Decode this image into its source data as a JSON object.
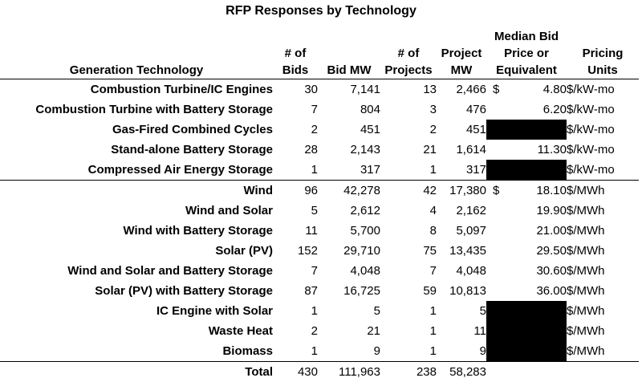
{
  "title": "RFP Responses by Technology",
  "columns": {
    "technology": "Generation Technology",
    "bids": [
      "# of",
      "Bids"
    ],
    "bid_mw": "Bid MW",
    "projects": [
      "# of",
      "Projects"
    ],
    "project_mw": [
      "Project",
      "MW"
    ],
    "median_price": [
      "Median Bid",
      "Price or",
      "Equivalent"
    ],
    "pricing_units": [
      "Pricing",
      "Units"
    ]
  },
  "rows": [
    {
      "technology": "Combustion Turbine/IC Engines",
      "bids": "30",
      "bid_mw": "7,141",
      "projects": "13",
      "project_mw": "2,466",
      "dollar": "$",
      "price": "4.80",
      "redacted": false,
      "units": "$/kW-mo",
      "group_end": false
    },
    {
      "technology": "Combustion Turbine with Battery Storage",
      "bids": "7",
      "bid_mw": "804",
      "projects": "3",
      "project_mw": "476",
      "dollar": "",
      "price": "6.20",
      "redacted": false,
      "units": "$/kW-mo",
      "group_end": false
    },
    {
      "technology": "Gas-Fired Combined Cycles",
      "bids": "2",
      "bid_mw": "451",
      "projects": "2",
      "project_mw": "451",
      "dollar": "",
      "price": "",
      "redacted": true,
      "units": "$/kW-mo",
      "group_end": false
    },
    {
      "technology": "Stand-alone Battery Storage",
      "bids": "28",
      "bid_mw": "2,143",
      "projects": "21",
      "project_mw": "1,614",
      "dollar": "",
      "price": "11.30",
      "redacted": false,
      "units": "$/kW-mo",
      "group_end": false
    },
    {
      "technology": "Compressed Air Energy Storage",
      "bids": "1",
      "bid_mw": "317",
      "projects": "1",
      "project_mw": "317",
      "dollar": "",
      "price": "",
      "redacted": true,
      "units": "$/kW-mo",
      "group_end": true
    },
    {
      "technology": "Wind",
      "bids": "96",
      "bid_mw": "42,278",
      "projects": "42",
      "project_mw": "17,380",
      "dollar": "$",
      "price": "18.10",
      "redacted": false,
      "units": "$/MWh",
      "group_end": false
    },
    {
      "technology": "Wind and Solar",
      "bids": "5",
      "bid_mw": "2,612",
      "projects": "4",
      "project_mw": "2,162",
      "dollar": "",
      "price": "19.90",
      "redacted": false,
      "units": "$/MWh",
      "group_end": false
    },
    {
      "technology": "Wind with Battery Storage",
      "bids": "11",
      "bid_mw": "5,700",
      "projects": "8",
      "project_mw": "5,097",
      "dollar": "",
      "price": "21.00",
      "redacted": false,
      "units": "$/MWh",
      "group_end": false
    },
    {
      "technology": "Solar (PV)",
      "bids": "152",
      "bid_mw": "29,710",
      "projects": "75",
      "project_mw": "13,435",
      "dollar": "",
      "price": "29.50",
      "redacted": false,
      "units": "$/MWh",
      "group_end": false
    },
    {
      "technology": "Wind and Solar and Battery Storage",
      "bids": "7",
      "bid_mw": "4,048",
      "projects": "7",
      "project_mw": "4,048",
      "dollar": "",
      "price": "30.60",
      "redacted": false,
      "units": "$/MWh",
      "group_end": false
    },
    {
      "technology": "Solar (PV) with Battery Storage",
      "bids": "87",
      "bid_mw": "16,725",
      "projects": "59",
      "project_mw": "10,813",
      "dollar": "",
      "price": "36.00",
      "redacted": false,
      "units": "$/MWh",
      "group_end": false
    },
    {
      "technology": "IC Engine with Solar",
      "bids": "1",
      "bid_mw": "5",
      "projects": "1",
      "project_mw": "5",
      "dollar": "",
      "price": "",
      "redacted": true,
      "units": "$/MWh",
      "group_end": false
    },
    {
      "technology": "Waste Heat",
      "bids": "2",
      "bid_mw": "21",
      "projects": "1",
      "project_mw": "11",
      "dollar": "",
      "price": "",
      "redacted": true,
      "units": "$/MWh",
      "group_end": false
    },
    {
      "technology": "Biomass",
      "bids": "1",
      "bid_mw": "9",
      "projects": "1",
      "project_mw": "9",
      "dollar": "",
      "price": "",
      "redacted": true,
      "units": "$/MWh",
      "group_end": false
    }
  ],
  "total": {
    "label": "Total",
    "bids": "430",
    "bid_mw": "111,963",
    "projects": "238",
    "project_mw": "58,283"
  }
}
